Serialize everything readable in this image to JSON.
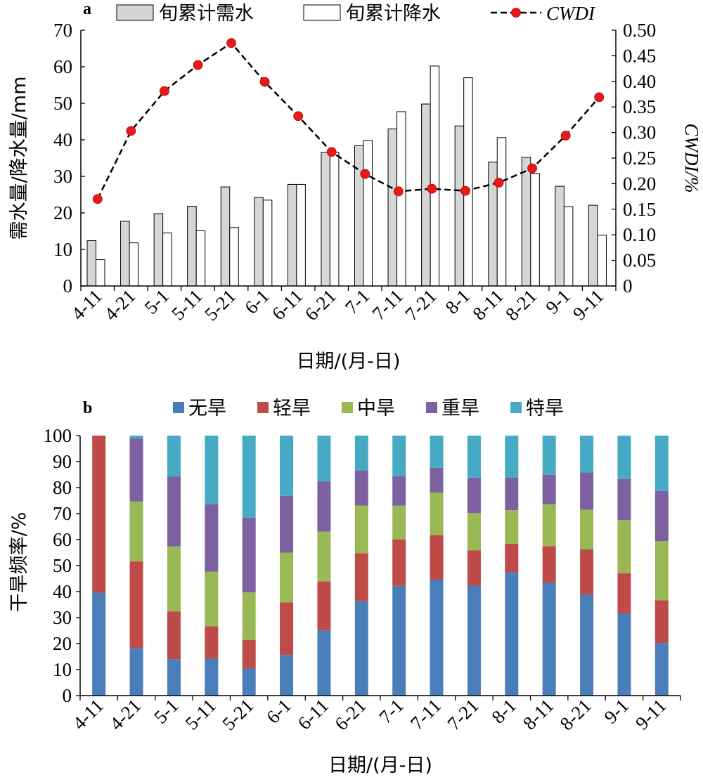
{
  "panel_labels": {
    "a": "a",
    "b": "b"
  },
  "chart_data": [
    {
      "type": "bar",
      "panel": "a",
      "categories": [
        "4-11",
        "4-21",
        "5-1",
        "5-11",
        "5-21",
        "6-1",
        "6-11",
        "6-21",
        "7-1",
        "7-11",
        "7-21",
        "8-1",
        "8-11",
        "8-21",
        "9-1",
        "9-11"
      ],
      "series": [
        {
          "name": "旬累计需水",
          "kind": "bar",
          "axis": "left",
          "color": "#d6d6d6",
          "values": [
            12.4,
            17.7,
            19.8,
            21.8,
            27.1,
            24.2,
            27.8,
            36.6,
            38.4,
            43.0,
            49.8,
            43.8,
            33.9,
            35.2,
            27.3,
            22.1
          ]
        },
        {
          "name": "旬累计降水",
          "kind": "bar",
          "axis": "left",
          "color": "#ffffff",
          "values": [
            7.2,
            11.8,
            14.5,
            15.1,
            16.0,
            23.5,
            27.8,
            36.6,
            39.8,
            47.7,
            60.2,
            57.0,
            40.6,
            30.8,
            21.7,
            13.9
          ]
        },
        {
          "name": "CWDI",
          "kind": "line",
          "axis": "right",
          "color": "#e8191a",
          "values": [
            0.17,
            0.303,
            0.381,
            0.432,
            0.475,
            0.399,
            0.332,
            0.262,
            0.219,
            0.185,
            0.19,
            0.186,
            0.202,
            0.23,
            0.294,
            0.369
          ]
        }
      ],
      "xlabel": "日期/(月-日)",
      "ylabel": "需水量/降水量/mm",
      "y2label": "CWDI/%",
      "ylim": [
        0,
        70
      ],
      "y2lim": [
        0,
        0.5
      ],
      "yticks": [
        "0",
        "10",
        "20",
        "30",
        "40",
        "50",
        "60",
        "70"
      ],
      "y2ticks": [
        "0",
        "0.05",
        "0.10",
        "0.15",
        "0.20",
        "0.25",
        "0.30",
        "0.35",
        "0.40",
        "0.45",
        "0.50"
      ],
      "legend": [
        "旬累计需水",
        "旬累计降水",
        "CWDI"
      ],
      "legend_position": "top",
      "grid": false
    },
    {
      "type": "bar",
      "stacked": true,
      "panel": "b",
      "categories": [
        "4-11",
        "4-21",
        "5-1",
        "5-11",
        "5-21",
        "6-1",
        "6-11",
        "6-21",
        "7-1",
        "7-11",
        "7-21",
        "8-1",
        "8-11",
        "8-21",
        "9-1",
        "9-11"
      ],
      "series": [
        {
          "name": "无旱",
          "color": "#4a7ebb",
          "values": [
            39.6,
            18.3,
            14.0,
            14.2,
            10.4,
            15.6,
            25.1,
            36.3,
            42.2,
            44.6,
            42.3,
            47.4,
            43.4,
            38.8,
            31.5,
            20.2
          ]
        },
        {
          "name": "轻旱",
          "color": "#be4b48",
          "values": [
            60.4,
            33.3,
            18.4,
            12.5,
            11.0,
            20.2,
            18.8,
            18.5,
            17.9,
            17.2,
            13.6,
            11.0,
            14.1,
            17.5,
            15.6,
            16.5
          ]
        },
        {
          "name": "中旱",
          "color": "#98b954",
          "values": [
            0,
            23.1,
            25.0,
            21.0,
            18.3,
            19.2,
            19.2,
            18.3,
            13.0,
            16.3,
            14.3,
            12.9,
            16.1,
            15.2,
            20.4,
            22.7
          ]
        },
        {
          "name": "重旱",
          "color": "#7d60a0",
          "values": [
            0,
            24.3,
            26.9,
            25.9,
            28.7,
            21.8,
            19.3,
            13.5,
            11.3,
            9.5,
            13.6,
            12.5,
            11.3,
            14.3,
            15.8,
            19.3
          ]
        },
        {
          "name": "特旱",
          "color": "#46aac5",
          "values": [
            0,
            1.0,
            15.7,
            26.4,
            31.6,
            23.2,
            17.6,
            13.4,
            15.6,
            12.4,
            16.2,
            16.2,
            15.1,
            14.2,
            16.7,
            21.3
          ]
        }
      ],
      "xlabel": "日期/(月-日)",
      "ylabel": "干旱频率/%",
      "ylim": [
        0,
        100
      ],
      "yticks": [
        "0",
        "10",
        "20",
        "30",
        "40",
        "50",
        "60",
        "70",
        "80",
        "90",
        "100"
      ],
      "legend": [
        "无旱",
        "轻旱",
        "中旱",
        "重旱",
        "特旱"
      ],
      "legend_position": "top",
      "grid": false
    }
  ]
}
